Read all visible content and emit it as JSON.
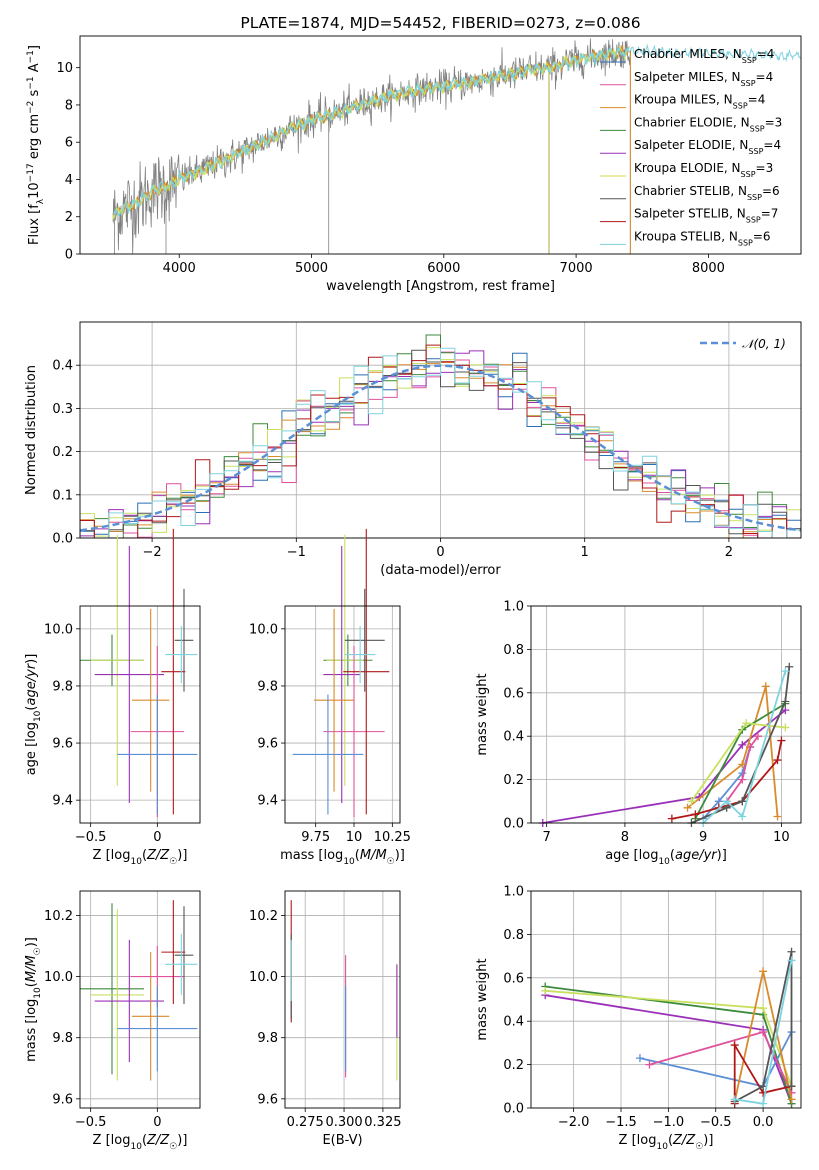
{
  "chart_data": [
    {
      "id": "spectrum",
      "type": "line",
      "title": "PLATE=1874, MJD=54452, FIBERID=0273, z=0.086",
      "xlabel": "wavelength [Angstrom, rest frame]",
      "ylabel": "Flux [f_λ10^{-17} erg cm^{-2} s^{-1} A^{-1}]",
      "xlim": [
        3250,
        8700
      ],
      "ylim": [
        0,
        11.7
      ],
      "xticks": [
        4000,
        5000,
        6000,
        7000,
        8000
      ],
      "yticks": [
        0,
        2,
        4,
        6,
        8,
        10
      ],
      "grid": false,
      "legend_position": "right",
      "continuum": {
        "x": [
          3500,
          3600,
          3700,
          3800,
          3900,
          4000,
          4200,
          4400,
          4600,
          4800,
          5000,
          5200,
          5400,
          5600,
          5800,
          6000,
          6200,
          6400,
          6600,
          6800,
          7000,
          7200,
          7400
        ],
        "y": [
          2.1,
          2.5,
          2.8,
          3.4,
          3.6,
          4.0,
          4.6,
          5.2,
          5.9,
          6.6,
          7.2,
          7.6,
          8.1,
          8.5,
          8.8,
          9.0,
          9.2,
          9.5,
          9.8,
          10.0,
          10.4,
          10.7,
          10.9
        ]
      },
      "series": [
        {
          "name": "Chabrier MILES, N_SSP=4",
          "color": "#2b6fb4"
        },
        {
          "name": "Salpeter MILES, N_SSP=4",
          "color": "#e0529c"
        },
        {
          "name": "Kroupa MILES, N_SSP=4",
          "color": "#d98a2b"
        },
        {
          "name": "Chabrier ELODIE, N_SSP=3",
          "color": "#3c8a3c"
        },
        {
          "name": "Salpeter ELODIE, N_SSP=4",
          "color": "#9b30b8"
        },
        {
          "name": "Kroupa ELODIE, N_SSP=3",
          "color": "#d4d84a"
        },
        {
          "name": "Chabrier STELIB, N_SSP=6",
          "color": "#555555"
        },
        {
          "name": "Salpeter STELIB, N_SSP=7",
          "color": "#b01818"
        },
        {
          "name": "Kroupa STELIB, N_SSP=6",
          "color": "#7fd3df"
        }
      ]
    },
    {
      "id": "residuals",
      "type": "line",
      "xlabel": "(data-model)/error",
      "ylabel": "Normed distribution",
      "xlim": [
        -2.5,
        2.5
      ],
      "ylim": [
        0,
        0.5
      ],
      "xticks": [
        -2,
        -1,
        0,
        1,
        2
      ],
      "yticks": [
        0.0,
        0.1,
        0.2,
        0.3,
        0.4
      ],
      "grid": true,
      "legend_position": "top-right",
      "legend": "𝒩(0, 1)",
      "reference_color": "#5b8fd6",
      "series_colors": [
        "#2b6fb4",
        "#e0529c",
        "#d98a2b",
        "#3c8a3c",
        "#9b30b8",
        "#c8e060",
        "#555555",
        "#b01818",
        "#7fd3df"
      ]
    },
    {
      "id": "z-age",
      "type": "scatter",
      "xlabel": "Z [log10(Z/Z☉)]",
      "ylabel": "age [log10(age/yr)]",
      "xlim": [
        -0.58,
        0.32
      ],
      "ylim": [
        9.32,
        10.08
      ],
      "xticks": [
        -0.5,
        0.0
      ],
      "yticks": [
        9.4,
        9.6,
        9.8,
        10.0
      ],
      "grid": true,
      "points": [
        {
          "x": -0.34,
          "y": 9.89,
          "xerr": 0.24,
          "yerr": 0.09,
          "color": "#3c8a3c"
        },
        {
          "x": -0.3,
          "y": 9.89,
          "xerr": 0.2,
          "yerr": 0.44,
          "color": "#c8e060"
        },
        {
          "x": -0.21,
          "y": 9.84,
          "xerr": 0.26,
          "yerr": 0.45,
          "color": "#9b30b8"
        },
        {
          "x": -0.05,
          "y": 9.75,
          "xerr": 0.14,
          "yerr": 0.32,
          "color": "#d98a2b"
        },
        {
          "x": 0.0,
          "y": 9.64,
          "xerr": 0.2,
          "yerr": 0.3,
          "color": "#e0529c"
        },
        {
          "x": 0.0,
          "y": 9.56,
          "xerr": 0.3,
          "yerr": 0.21,
          "color": "#5b8fd6"
        },
        {
          "x": 0.12,
          "y": 9.85,
          "xerr": 0.09,
          "yerr": 0.5,
          "color": "#b01818"
        },
        {
          "x": 0.2,
          "y": 9.96,
          "xerr": 0.07,
          "yerr": 0.18,
          "color": "#555555"
        },
        {
          "x": 0.18,
          "y": 9.91,
          "xerr": 0.12,
          "yerr": 0.1,
          "color": "#7fd3df"
        }
      ]
    },
    {
      "id": "mass-age",
      "type": "scatter",
      "xlabel": "mass [log10(M/M☉)]",
      "ylabel": "",
      "xlim": [
        9.55,
        10.3
      ],
      "ylim": [
        9.32,
        10.08
      ],
      "xticks": [
        9.75,
        10.0,
        10.25
      ],
      "yticks": [
        9.4,
        9.6,
        9.8,
        10.0
      ],
      "grid": true,
      "points": [
        {
          "x": 9.96,
          "y": 9.89,
          "xerr": 0.16,
          "yerr": 0.09,
          "color": "#3c8a3c"
        },
        {
          "x": 9.94,
          "y": 9.89,
          "xerr": 0.12,
          "yerr": 0.44,
          "color": "#c8e060"
        },
        {
          "x": 9.92,
          "y": 9.84,
          "xerr": 0.12,
          "yerr": 0.45,
          "color": "#9b30b8"
        },
        {
          "x": 9.87,
          "y": 9.75,
          "xerr": 0.13,
          "yerr": 0.32,
          "color": "#d98a2b"
        },
        {
          "x": 10.0,
          "y": 9.64,
          "xerr": 0.2,
          "yerr": 0.3,
          "color": "#e0529c"
        },
        {
          "x": 9.83,
          "y": 9.56,
          "xerr": 0.23,
          "yerr": 0.21,
          "color": "#5b8fd6"
        },
        {
          "x": 10.08,
          "y": 9.85,
          "xerr": 0.15,
          "yerr": 0.5,
          "color": "#b01818"
        },
        {
          "x": 10.07,
          "y": 9.96,
          "xerr": 0.13,
          "yerr": 0.18,
          "color": "#555555"
        },
        {
          "x": 10.04,
          "y": 9.91,
          "xerr": 0.1,
          "yerr": 0.1,
          "color": "#7fd3df"
        }
      ]
    },
    {
      "id": "age-weight",
      "type": "line",
      "xlabel": "age [log10(age/yr)]",
      "ylabel": "mass weight",
      "xlim": [
        6.8,
        10.25
      ],
      "ylim": [
        0,
        1.0
      ],
      "xticks": [
        7,
        8,
        9,
        10
      ],
      "yticks": [
        0.0,
        0.2,
        0.4,
        0.6,
        0.8,
        1.0
      ],
      "grid": true,
      "series": [
        {
          "color": "#9b30b8",
          "x": [
            6.95,
            8.95,
            9.5,
            10.05
          ],
          "y": [
            0.0,
            0.12,
            0.36,
            0.52
          ]
        },
        {
          "color": "#5b8fd6",
          "x": [
            9.0,
            9.2,
            9.5,
            9.6
          ],
          "y": [
            0.02,
            0.1,
            0.23,
            0.35
          ]
        },
        {
          "color": "#e0529c",
          "x": [
            9.3,
            9.5,
            9.6,
            9.7
          ],
          "y": [
            0.1,
            0.2,
            0.35,
            0.4
          ]
        },
        {
          "color": "#d98a2b",
          "x": [
            8.8,
            9.5,
            9.8,
            9.95
          ],
          "y": [
            0.07,
            0.27,
            0.63,
            0.03
          ]
        },
        {
          "color": "#3c8a3c",
          "x": [
            8.9,
            9.5,
            10.05
          ],
          "y": [
            0.02,
            0.43,
            0.55
          ]
        },
        {
          "color": "#c8e060",
          "x": [
            8.85,
            9.55,
            10.05
          ],
          "y": [
            0.1,
            0.46,
            0.44
          ]
        },
        {
          "color": "#b01818",
          "x": [
            8.6,
            8.9,
            9.2,
            9.5,
            9.95,
            10.0
          ],
          "y": [
            0.02,
            0.04,
            0.07,
            0.1,
            0.29,
            0.38
          ]
        },
        {
          "color": "#555555",
          "x": [
            8.85,
            9.3,
            9.5,
            10.05,
            10.1
          ],
          "y": [
            0.0,
            0.07,
            0.1,
            0.56,
            0.72
          ]
        },
        {
          "color": "#7fd3df",
          "x": [
            9.0,
            9.3,
            9.5,
            10.05
          ],
          "y": [
            0.0,
            0.1,
            0.03,
            0.7
          ]
        }
      ]
    },
    {
      "id": "z-mass",
      "type": "scatter",
      "xlabel": "Z [log10(Z/Z☉)]",
      "ylabel": "mass [log10(M/M☉)]",
      "xlim": [
        -0.58,
        0.32
      ],
      "ylim": [
        9.57,
        10.28
      ],
      "xticks": [
        -0.5,
        0.0
      ],
      "yticks": [
        9.6,
        9.8,
        10.0,
        10.2
      ],
      "grid": true,
      "points": [
        {
          "x": -0.34,
          "y": 9.96,
          "xerr": 0.24,
          "yerr": 0.28,
          "color": "#3c8a3c"
        },
        {
          "x": -0.3,
          "y": 9.94,
          "xerr": 0.2,
          "yerr": 0.28,
          "color": "#c8e060"
        },
        {
          "x": -0.21,
          "y": 9.92,
          "xerr": 0.26,
          "yerr": 0.2,
          "color": "#9b30b8"
        },
        {
          "x": -0.05,
          "y": 9.87,
          "xerr": 0.14,
          "yerr": 0.21,
          "color": "#d98a2b"
        },
        {
          "x": 0.0,
          "y": 10.0,
          "xerr": 0.2,
          "yerr": 0.1,
          "color": "#e0529c"
        },
        {
          "x": 0.0,
          "y": 9.83,
          "xerr": 0.3,
          "yerr": 0.14,
          "color": "#5b8fd6"
        },
        {
          "x": 0.12,
          "y": 10.08,
          "xerr": 0.09,
          "yerr": 0.17,
          "color": "#b01818"
        },
        {
          "x": 0.2,
          "y": 10.07,
          "xerr": 0.07,
          "yerr": 0.16,
          "color": "#555555"
        },
        {
          "x": 0.18,
          "y": 10.04,
          "xerr": 0.12,
          "yerr": 0.1,
          "color": "#7fd3df"
        }
      ]
    },
    {
      "id": "ebv-mass",
      "type": "scatter",
      "xlabel": "E(B-V)",
      "ylabel": "",
      "xlim": [
        0.262,
        0.336
      ],
      "ylim": [
        9.57,
        10.28
      ],
      "xtick_values": [
        0.275,
        0.3,
        0.325
      ],
      "xtick_labels": [
        "0.275",
        "0.300",
        "0.325"
      ],
      "yticks": [
        9.6,
        9.8,
        10.0,
        10.2
      ],
      "grid": true,
      "points": [
        {
          "x": 0.266,
          "y": 10.05,
          "yerr": 0.2,
          "color": "#b01818"
        },
        {
          "x": 0.266,
          "y": 10.0,
          "yerr": 0.14,
          "color": "#555555"
        },
        {
          "x": 0.266,
          "y": 10.02,
          "yerr": 0.1,
          "color": "#7fd3df"
        },
        {
          "x": 0.301,
          "y": 9.87,
          "yerr": 0.2,
          "color": "#e0529c"
        },
        {
          "x": 0.301,
          "y": 9.83,
          "yerr": 0.14,
          "color": "#5b8fd6"
        },
        {
          "x": 0.334,
          "y": 9.85,
          "yerr": 0.19,
          "color": "#c8e060"
        },
        {
          "x": 0.334,
          "y": 9.92,
          "yerr": 0.12,
          "color": "#9b30b8"
        }
      ]
    },
    {
      "id": "z-weight",
      "type": "line",
      "xlabel": "Z [log10(Z/Z☉)]",
      "ylabel": "mass weight",
      "xlim": [
        -2.45,
        0.4
      ],
      "ylim": [
        0,
        1.0
      ],
      "xticks": [
        -2.0,
        -1.5,
        -1.0,
        -0.5,
        0.0
      ],
      "tick_labels": [
        "−2.0",
        "−1.5",
        "−1.0",
        "−0.5",
        "0.0"
      ],
      "yticks": [
        0.0,
        0.2,
        0.4,
        0.6,
        0.8,
        1.0
      ],
      "grid": true,
      "series": [
        {
          "color": "#9b30b8",
          "x": [
            -2.3,
            0.0,
            0.3
          ],
          "y": [
            0.52,
            0.36,
            0.02
          ]
        },
        {
          "color": "#3c8a3c",
          "x": [
            -2.3,
            0.0,
            0.3
          ],
          "y": [
            0.56,
            0.43,
            0.02
          ]
        },
        {
          "color": "#c8e060",
          "x": [
            -2.3,
            0.0,
            0.3
          ],
          "y": [
            0.54,
            0.46,
            0.1
          ]
        },
        {
          "color": "#5b8fd6",
          "x": [
            -1.3,
            0.0,
            0.3
          ],
          "y": [
            0.23,
            0.1,
            0.35
          ]
        },
        {
          "color": "#e0529c",
          "x": [
            -1.2,
            0.0,
            0.3
          ],
          "y": [
            0.2,
            0.35,
            0.07
          ]
        },
        {
          "color": "#d98a2b",
          "x": [
            -0.3,
            0.0,
            0.3
          ],
          "y": [
            0.03,
            0.63,
            0.04
          ]
        },
        {
          "color": "#b01818",
          "x": [
            -0.3,
            -0.3,
            0.0,
            0.3
          ],
          "y": [
            0.02,
            0.29,
            0.07,
            0.1
          ]
        },
        {
          "color": "#555555",
          "x": [
            -0.3,
            0.0,
            0.3,
            0.3
          ],
          "y": [
            0.03,
            0.1,
            0.72,
            0.1
          ]
        },
        {
          "color": "#7fd3df",
          "x": [
            -0.3,
            0.0,
            0.3
          ],
          "y": [
            0.04,
            0.02,
            0.68
          ]
        }
      ]
    }
  ]
}
